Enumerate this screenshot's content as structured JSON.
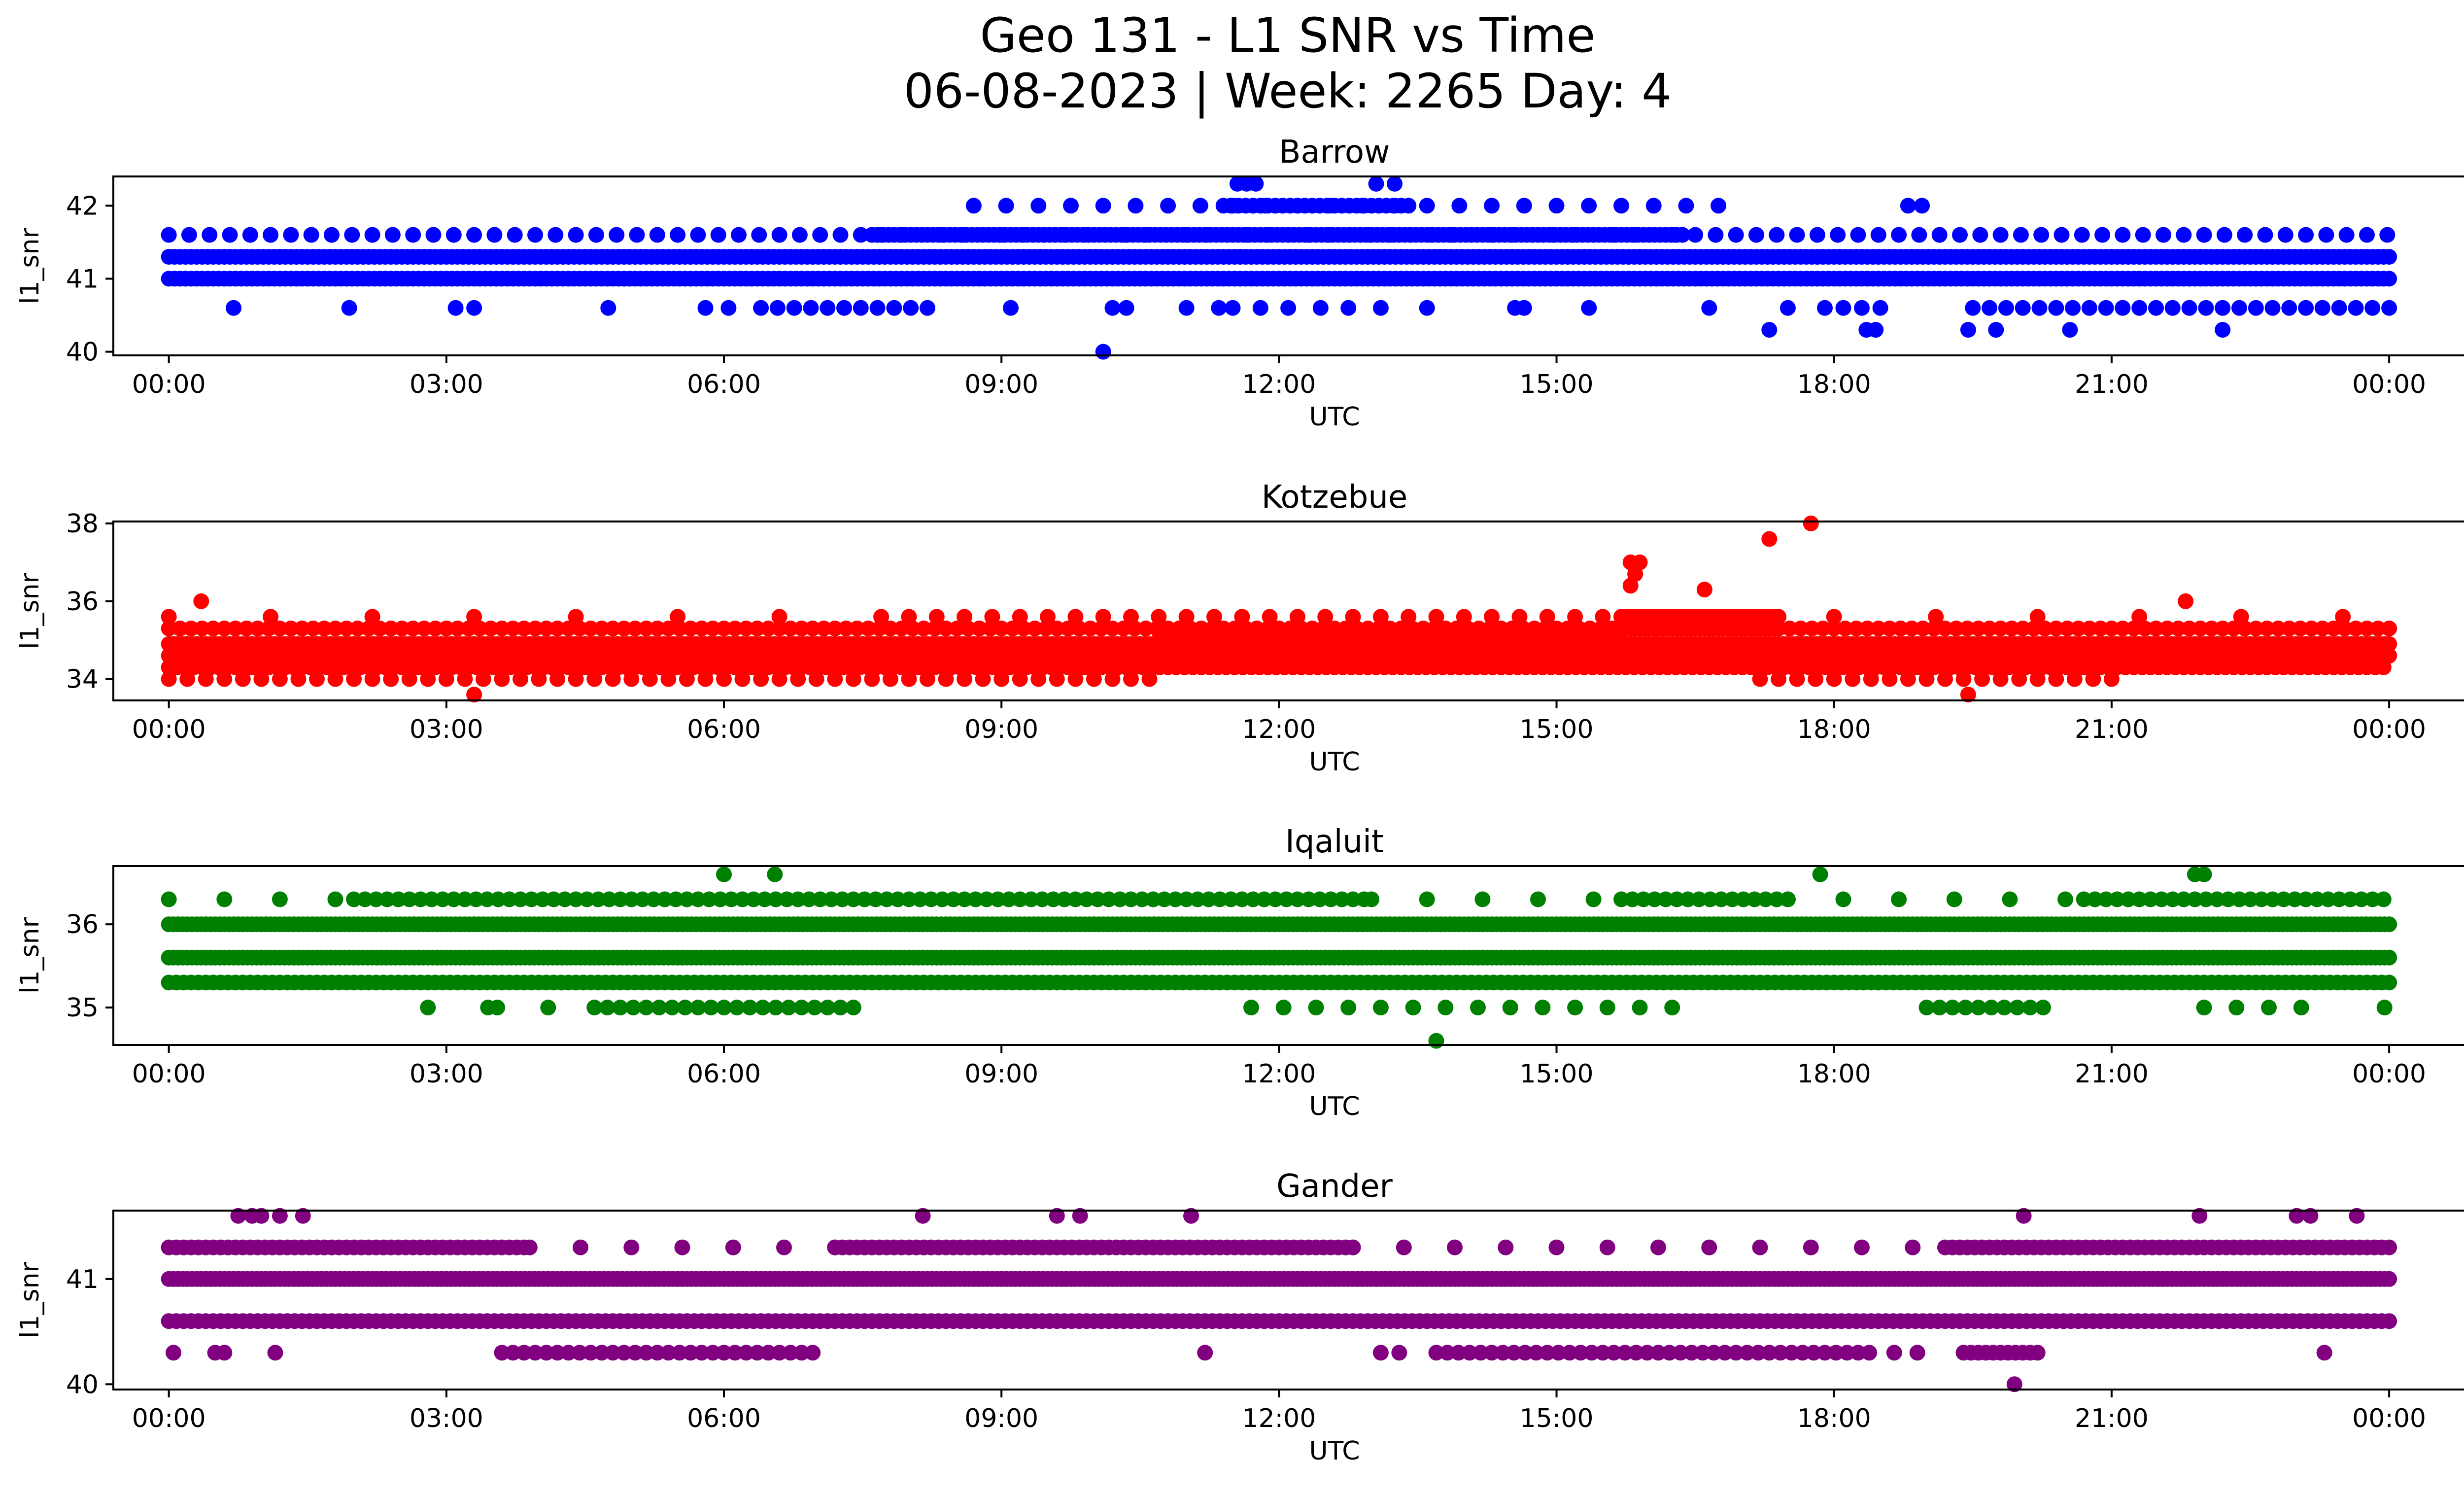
{
  "figure": {
    "title_line1": "Geo 131 - L1 SNR vs Time",
    "title_line2": "06-08-2023 | Week: 2265 Day: 4"
  },
  "chart_data": [
    {
      "type": "scatter",
      "title": "Barrow",
      "xlabel": "UTC",
      "ylabel": "l1_snr",
      "color": "#0000ff",
      "xlim_hours": [
        -0.6,
        25.8
      ],
      "ylim": [
        39.95,
        42.4
      ],
      "x_ticks": [
        "00:00",
        "03:00",
        "06:00",
        "09:00",
        "12:00",
        "15:00",
        "18:00",
        "21:00",
        "00:00"
      ],
      "y_ticks": [
        40,
        41,
        42
      ],
      "bands": [
        {
          "y": 41.0,
          "ranges": [
            [
              0,
              24
            ]
          ],
          "step": 0.06
        },
        {
          "y": 41.3,
          "ranges": [
            [
              0,
              24
            ]
          ],
          "step": 0.06
        },
        {
          "y": 41.6,
          "ranges": [
            [
              0,
              24
            ]
          ],
          "step": 0.22
        },
        {
          "y": 41.6,
          "ranges": [
            [
              7.6,
              16.4
            ]
          ],
          "step": 0.06
        },
        {
          "y": 40.6,
          "ranges": [
            [
              6.4,
              8.2
            ],
            [
              19.5,
              24
            ]
          ],
          "step": 0.18
        },
        {
          "y": 42.0,
          "ranges": [
            [
              11.4,
              13.4
            ]
          ],
          "step": 0.08
        },
        {
          "y": 42.0,
          "ranges": [
            [
              8.7,
              16.8
            ]
          ],
          "step": 0.35
        }
      ],
      "points": [
        [
          0.7,
          40.6
        ],
        [
          1.95,
          40.6
        ],
        [
          3.1,
          40.6
        ],
        [
          3.3,
          40.6
        ],
        [
          4.75,
          40.6
        ],
        [
          5.8,
          40.6
        ],
        [
          6.05,
          40.6
        ],
        [
          9.1,
          40.6
        ],
        [
          10.1,
          40.0
        ],
        [
          10.2,
          40.6
        ],
        [
          10.35,
          40.6
        ],
        [
          11.0,
          40.6
        ],
        [
          11.35,
          40.6
        ],
        [
          11.5,
          40.6
        ],
        [
          11.8,
          40.6
        ],
        [
          12.1,
          40.6
        ],
        [
          12.45,
          40.6
        ],
        [
          12.75,
          40.6
        ],
        [
          13.1,
          40.6
        ],
        [
          13.6,
          40.6
        ],
        [
          14.55,
          40.6
        ],
        [
          14.65,
          40.6
        ],
        [
          15.35,
          40.6
        ],
        [
          16.65,
          40.6
        ],
        [
          17.3,
          40.3
        ],
        [
          17.5,
          40.6
        ],
        [
          17.9,
          40.6
        ],
        [
          18.1,
          40.6
        ],
        [
          18.3,
          40.6
        ],
        [
          18.35,
          40.3
        ],
        [
          18.45,
          40.3
        ],
        [
          18.5,
          40.6
        ],
        [
          19.45,
          40.3
        ],
        [
          19.75,
          40.3
        ],
        [
          20.55,
          40.3
        ],
        [
          22.2,
          40.3
        ],
        [
          11.55,
          42.3
        ],
        [
          11.65,
          42.3
        ],
        [
          11.75,
          42.3
        ],
        [
          13.05,
          42.3
        ],
        [
          13.25,
          42.3
        ],
        [
          18.8,
          42.0
        ],
        [
          18.95,
          42.0
        ]
      ]
    },
    {
      "type": "scatter",
      "title": "Kotzebue",
      "xlabel": "UTC",
      "ylabel": "l1_snr",
      "color": "#ff0000",
      "xlim_hours": [
        -0.6,
        25.8
      ],
      "ylim": [
        33.45,
        38.05
      ],
      "x_ticks": [
        "00:00",
        "03:00",
        "06:00",
        "09:00",
        "12:00",
        "15:00",
        "18:00",
        "21:00",
        "00:00"
      ],
      "y_ticks": [
        34,
        36,
        38
      ],
      "bands": [
        {
          "y": 34.6,
          "ranges": [
            [
              0,
              24
            ]
          ],
          "step": 0.05
        },
        {
          "y": 34.9,
          "ranges": [
            [
              0,
              24
            ]
          ],
          "step": 0.05
        },
        {
          "y": 35.0,
          "ranges": [
            [
              10.7,
              15.7
            ]
          ],
          "step": 0.05
        },
        {
          "y": 35.3,
          "ranges": [
            [
              0,
              24
            ]
          ],
          "step": 0.12
        },
        {
          "y": 34.3,
          "ranges": [
            [
              0,
              24
            ]
          ],
          "step": 0.09
        },
        {
          "y": 34.0,
          "ranges": [
            [
              0,
              10.6
            ],
            [
              17.2,
              21.0
            ]
          ],
          "step": 0.2
        },
        {
          "y": 35.3,
          "ranges": [
            [
              15.7,
              17.4
            ]
          ],
          "step": 0.05
        },
        {
          "y": 35.6,
          "ranges": [
            [
              15.7,
              17.4
            ]
          ],
          "step": 0.05
        },
        {
          "y": 35.6,
          "ranges": [
            [
              8.0,
              15.5
            ]
          ],
          "step": 0.3
        },
        {
          "y": 35.6,
          "ranges": [
            [
              0,
              8.0
            ],
            [
              18.0,
              24
            ]
          ],
          "step": 1.1
        }
      ],
      "points": [
        [
          0.35,
          36.0
        ],
        [
          3.3,
          33.6
        ],
        [
          15.8,
          37.0
        ],
        [
          15.85,
          36.7
        ],
        [
          15.8,
          36.4
        ],
        [
          15.9,
          37.0
        ],
        [
          16.6,
          36.3
        ],
        [
          17.3,
          37.6
        ],
        [
          17.75,
          38.0
        ],
        [
          19.45,
          33.6
        ],
        [
          21.8,
          36.0
        ]
      ]
    },
    {
      "type": "scatter",
      "title": "Iqaluit",
      "xlabel": "UTC",
      "ylabel": "l1_snr",
      "color": "#008000",
      "xlim_hours": [
        -0.6,
        25.8
      ],
      "ylim": [
        34.55,
        36.7
      ],
      "x_ticks": [
        "00:00",
        "03:00",
        "06:00",
        "09:00",
        "12:00",
        "15:00",
        "18:00",
        "21:00",
        "00:00"
      ],
      "y_ticks": [
        35,
        36
      ],
      "bands": [
        {
          "y": 35.6,
          "ranges": [
            [
              0,
              24
            ]
          ],
          "step": 0.05
        },
        {
          "y": 36.0,
          "ranges": [
            [
              0,
              24
            ]
          ],
          "step": 0.05
        },
        {
          "y": 35.3,
          "ranges": [
            [
              0,
              24
            ]
          ],
          "step": 0.08
        },
        {
          "y": 36.3,
          "ranges": [
            [
              2.0,
              13.0
            ],
            [
              15.7,
              17.5
            ],
            [
              20.7,
              24
            ]
          ],
          "step": 0.12
        },
        {
          "y": 36.3,
          "ranges": [
            [
              0,
              2.0
            ],
            [
              13.0,
              15.7
            ],
            [
              17.5,
              20.7
            ]
          ],
          "step": 0.6
        },
        {
          "y": 35.0,
          "ranges": [
            [
              4.6,
              7.5
            ],
            [
              19.0,
              20.3
            ]
          ],
          "step": 0.14
        },
        {
          "y": 35.0,
          "ranges": [
            [
              11.7,
              16.4
            ],
            [
              22.0,
              23.2
            ]
          ],
          "step": 0.35
        }
      ],
      "points": [
        [
          2.8,
          35.0
        ],
        [
          3.45,
          35.0
        ],
        [
          3.55,
          35.0
        ],
        [
          4.1,
          35.0
        ],
        [
          6.0,
          36.6
        ],
        [
          6.55,
          36.6
        ],
        [
          13.7,
          34.6
        ],
        [
          17.85,
          36.6
        ],
        [
          21.9,
          36.6
        ],
        [
          22.0,
          36.6
        ],
        [
          23.95,
          35.0
        ]
      ]
    },
    {
      "type": "scatter",
      "title": "Gander",
      "xlabel": "UTC",
      "ylabel": "l1_snr",
      "color": "#800080",
      "xlim_hours": [
        -0.6,
        25.8
      ],
      "ylim": [
        39.95,
        41.65
      ],
      "x_ticks": [
        "00:00",
        "03:00",
        "06:00",
        "09:00",
        "12:00",
        "15:00",
        "18:00",
        "21:00",
        "00:00"
      ],
      "y_ticks": [
        40,
        41
      ],
      "bands": [
        {
          "y": 41.0,
          "ranges": [
            [
              0,
              24
            ]
          ],
          "step": 0.05
        },
        {
          "y": 40.6,
          "ranges": [
            [
              0,
              24
            ]
          ],
          "step": 0.08
        },
        {
          "y": 41.3,
          "ranges": [
            [
              0,
              3.9
            ],
            [
              7.2,
              12.8
            ],
            [
              19.2,
              24
            ]
          ],
          "step": 0.08
        },
        {
          "y": 41.3,
          "ranges": [
            [
              3.9,
              7.2
            ],
            [
              12.8,
              19.2
            ]
          ],
          "step": 0.55
        },
        {
          "y": 40.3,
          "ranges": [
            [
              3.6,
              7.0
            ],
            [
              13.7,
              18.4
            ]
          ],
          "step": 0.12
        },
        {
          "y": 40.3,
          "ranges": [
            [
              19.4,
              20.2
            ]
          ],
          "step": 0.08
        }
      ],
      "points": [
        [
          0.05,
          40.3
        ],
        [
          0.5,
          40.3
        ],
        [
          0.6,
          40.3
        ],
        [
          1.15,
          40.3
        ],
        [
          0.75,
          41.6
        ],
        [
          0.9,
          41.6
        ],
        [
          1.0,
          41.6
        ],
        [
          1.2,
          41.6
        ],
        [
          1.45,
          41.6
        ],
        [
          8.15,
          41.6
        ],
        [
          9.6,
          41.6
        ],
        [
          9.85,
          41.6
        ],
        [
          11.05,
          41.6
        ],
        [
          11.2,
          40.3
        ],
        [
          13.1,
          40.3
        ],
        [
          13.3,
          40.3
        ],
        [
          18.65,
          40.3
        ],
        [
          18.9,
          40.3
        ],
        [
          19.95,
          40.0
        ],
        [
          20.05,
          41.6
        ],
        [
          21.95,
          41.6
        ],
        [
          23.0,
          41.6
        ],
        [
          23.15,
          41.6
        ],
        [
          23.65,
          41.6
        ],
        [
          23.3,
          40.3
        ]
      ]
    }
  ]
}
